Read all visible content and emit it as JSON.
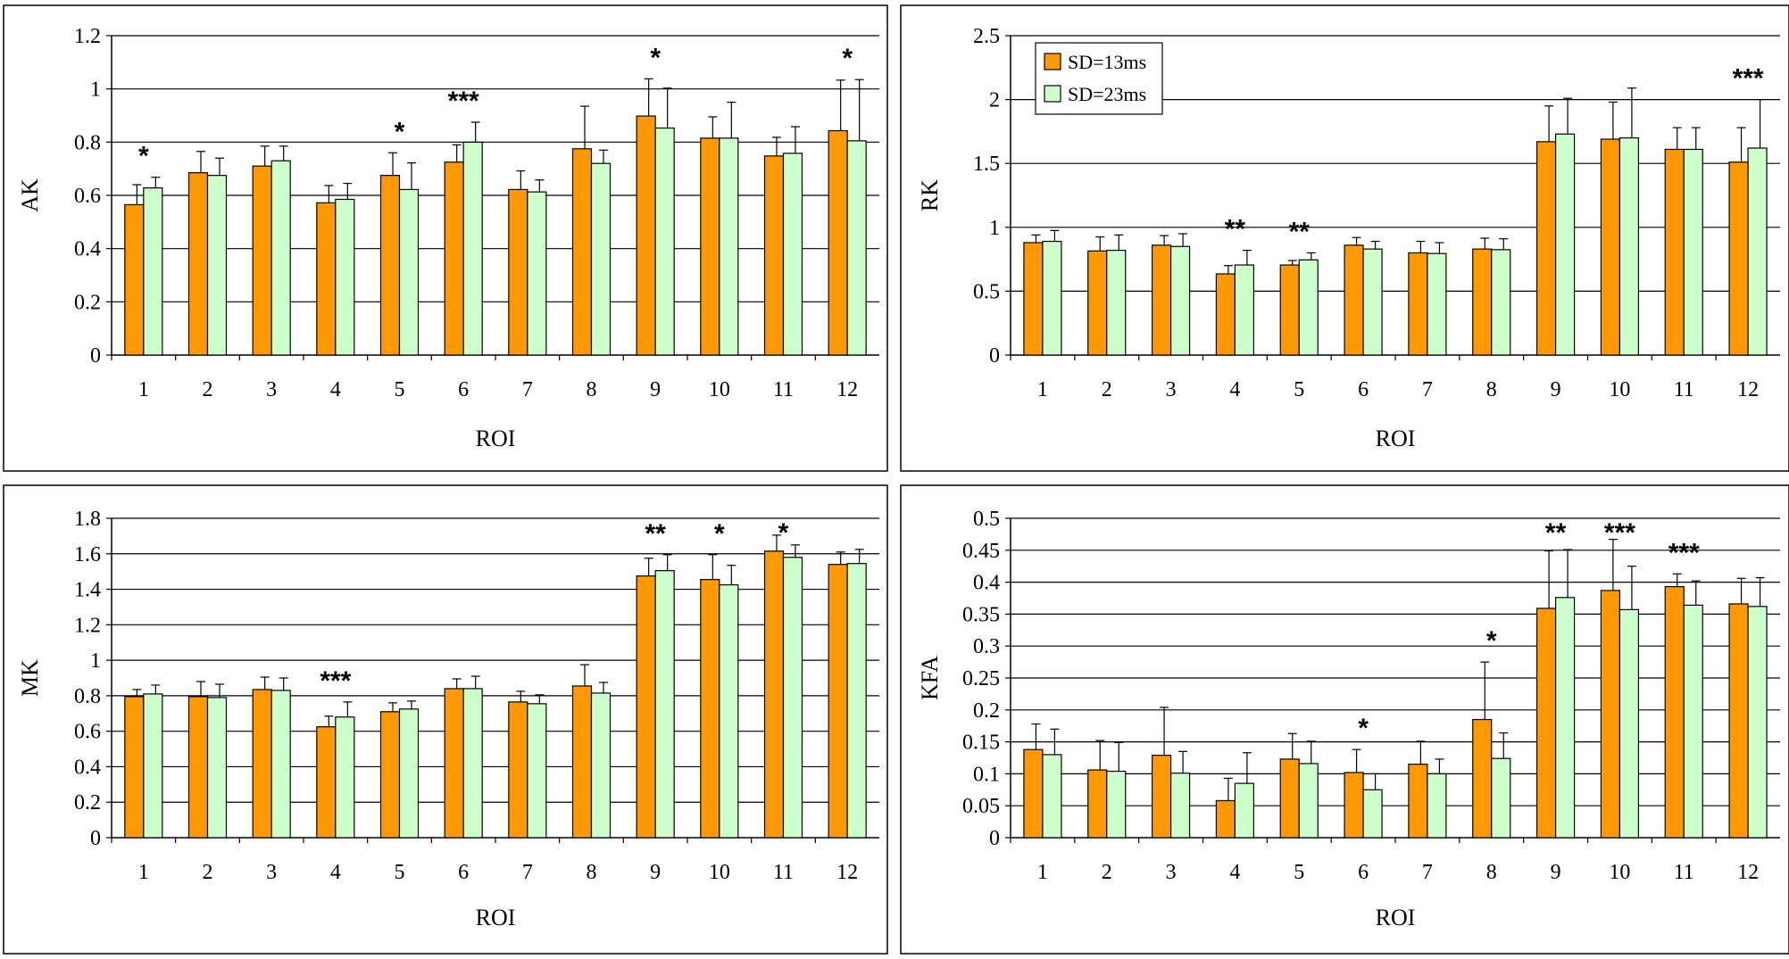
{
  "colors": {
    "sd13": "#ff9900",
    "sd23": "#ccffcc",
    "stroke": "#000000",
    "grid": "#000000"
  },
  "legend": [
    {
      "label": "SD=13ms",
      "color": "#ff9900"
    },
    {
      "label": "SD=23ms",
      "color": "#ccffcc"
    }
  ],
  "chart_data": [
    {
      "type": "bar",
      "ylabel": "AK",
      "xlabel": "ROI",
      "ylim": [
        0,
        1.2
      ],
      "yticks": [
        "0",
        "0.2",
        "0.4",
        "0.6",
        "0.8",
        "1",
        "1.2"
      ],
      "categories": [
        "1",
        "2",
        "3",
        "4",
        "5",
        "6",
        "7",
        "8",
        "9",
        "10",
        "11",
        "12"
      ],
      "series": [
        {
          "name": "SD=13ms",
          "values": [
            0.565,
            0.685,
            0.71,
            0.572,
            0.675,
            0.725,
            0.622,
            0.775,
            0.898,
            0.815,
            0.748,
            0.843
          ],
          "errors": [
            0.075,
            0.08,
            0.075,
            0.065,
            0.085,
            0.065,
            0.07,
            0.16,
            0.14,
            0.08,
            0.07,
            0.19
          ]
        },
        {
          "name": "SD=23ms",
          "values": [
            0.628,
            0.675,
            0.73,
            0.585,
            0.622,
            0.8,
            0.613,
            0.72,
            0.853,
            0.815,
            0.758,
            0.805
          ],
          "errors": [
            0.04,
            0.065,
            0.055,
            0.06,
            0.1,
            0.075,
            0.045,
            0.05,
            0.15,
            0.135,
            0.1,
            0.23
          ]
        }
      ],
      "significance": [
        "*",
        "",
        "",
        "",
        "*",
        "***",
        "",
        "",
        "*",
        "",
        "",
        "*"
      ],
      "grid": true
    },
    {
      "type": "bar",
      "ylabel": "RK",
      "xlabel": "ROI",
      "ylim": [
        0,
        2.5
      ],
      "yticks": [
        "0",
        "0.5",
        "1",
        "1.5",
        "2",
        "2.5"
      ],
      "categories": [
        "1",
        "2",
        "3",
        "4",
        "5",
        "6",
        "7",
        "8",
        "9",
        "10",
        "11",
        "12"
      ],
      "series": [
        {
          "name": "SD=13ms",
          "values": [
            0.88,
            0.815,
            0.86,
            0.635,
            0.705,
            0.86,
            0.8,
            0.83,
            1.67,
            1.69,
            1.61,
            1.51
          ],
          "errors": [
            0.06,
            0.11,
            0.075,
            0.065,
            0.035,
            0.06,
            0.09,
            0.085,
            0.28,
            0.29,
            0.17,
            0.27
          ]
        },
        {
          "name": "SD=23ms",
          "values": [
            0.89,
            0.82,
            0.85,
            0.705,
            0.745,
            0.83,
            0.795,
            0.825,
            1.73,
            1.7,
            1.61,
            1.62
          ],
          "errors": [
            0.085,
            0.12,
            0.1,
            0.115,
            0.055,
            0.06,
            0.085,
            0.085,
            0.28,
            0.39,
            0.17,
            0.38
          ]
        }
      ],
      "significance": [
        "",
        "",
        "",
        "**",
        "**",
        "",
        "",
        "",
        "",
        "",
        "",
        "***"
      ],
      "grid": true,
      "legend_position": "top-left"
    },
    {
      "type": "bar",
      "ylabel": "MK",
      "xlabel": "ROI",
      "ylim": [
        0,
        1.8
      ],
      "yticks": [
        "0",
        "0.2",
        "0.4",
        "0.6",
        "0.8",
        "1",
        "1.2",
        "1.4",
        "1.6",
        "1.8"
      ],
      "categories": [
        "1",
        "2",
        "3",
        "4",
        "5",
        "6",
        "7",
        "8",
        "9",
        "10",
        "11",
        "12"
      ],
      "series": [
        {
          "name": "SD=13ms",
          "values": [
            0.795,
            0.795,
            0.835,
            0.625,
            0.71,
            0.84,
            0.765,
            0.855,
            1.475,
            1.455,
            1.615,
            1.54
          ],
          "errors": [
            0.04,
            0.085,
            0.07,
            0.06,
            0.05,
            0.055,
            0.06,
            0.12,
            0.1,
            0.14,
            0.09,
            0.07
          ]
        },
        {
          "name": "SD=23ms",
          "values": [
            0.81,
            0.79,
            0.83,
            0.68,
            0.725,
            0.84,
            0.755,
            0.815,
            1.505,
            1.425,
            1.58,
            1.545
          ],
          "errors": [
            0.05,
            0.075,
            0.07,
            0.085,
            0.045,
            0.07,
            0.05,
            0.06,
            0.09,
            0.11,
            0.07,
            0.08
          ]
        }
      ],
      "significance": [
        "",
        "",
        "",
        "***",
        "",
        "",
        "",
        "",
        "**",
        "*",
        "*",
        ""
      ],
      "grid": true
    },
    {
      "type": "bar",
      "ylabel": "KFA",
      "xlabel": "ROI",
      "ylim": [
        0,
        0.5
      ],
      "yticks": [
        "0",
        "0.05",
        "0.1",
        "0.15",
        "0.2",
        "0.25",
        "0.3",
        "0.35",
        "0.4",
        "0.45",
        "0.5"
      ],
      "categories": [
        "1",
        "2",
        "3",
        "4",
        "5",
        "6",
        "7",
        "8",
        "9",
        "10",
        "11",
        "12"
      ],
      "series": [
        {
          "name": "SD=13ms",
          "values": [
            0.138,
            0.106,
            0.129,
            0.058,
            0.123,
            0.102,
            0.115,
            0.185,
            0.359,
            0.387,
            0.393,
            0.366
          ],
          "errors": [
            0.04,
            0.046,
            0.075,
            0.035,
            0.04,
            0.036,
            0.036,
            0.09,
            0.09,
            0.08,
            0.02,
            0.04
          ]
        },
        {
          "name": "SD=23ms",
          "values": [
            0.13,
            0.104,
            0.101,
            0.085,
            0.116,
            0.075,
            0.1,
            0.124,
            0.376,
            0.357,
            0.364,
            0.362
          ],
          "errors": [
            0.04,
            0.045,
            0.034,
            0.048,
            0.035,
            0.025,
            0.023,
            0.04,
            0.075,
            0.068,
            0.038,
            0.045
          ]
        }
      ],
      "significance": [
        "",
        "",
        "",
        "",
        "",
        "*",
        "",
        "*",
        "**",
        "***",
        "***",
        ""
      ],
      "grid": true
    }
  ]
}
